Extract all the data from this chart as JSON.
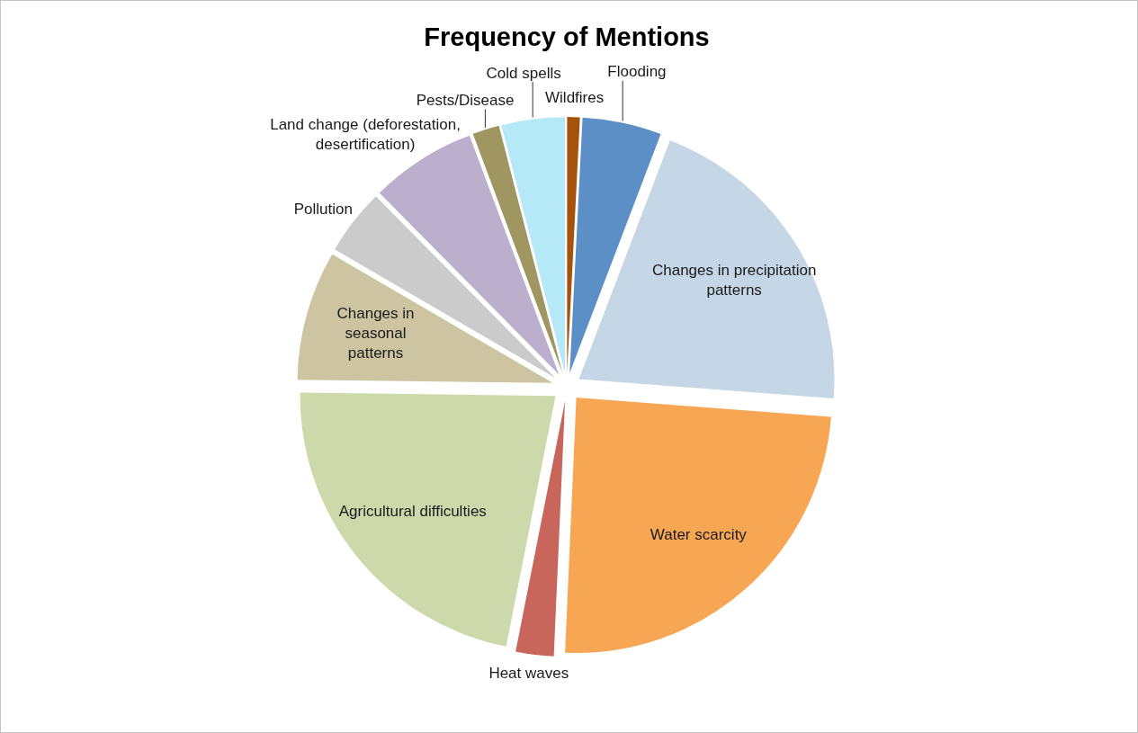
{
  "chart_data": {
    "type": "pie",
    "title": "Frequency of Mentions",
    "categories": [
      "Wildfires",
      "Flooding",
      "Changes in precipitation patterns",
      "Water scarcity",
      "Heat waves",
      "Agricultural difficulties",
      "Changes in seasonal patterns",
      "Pollution",
      "Land change (deforestation, desertification)",
      "Pests/Disease",
      "Cold spells"
    ],
    "values": [
      0.8,
      5.0,
      20.4,
      24.5,
      2.4,
      22.1,
      8.2,
      4.2,
      6.7,
      1.7,
      4.0
    ],
    "colors": [
      "#a5520c",
      "#5b8fc6",
      "#c5d6e7",
      "#f7a654",
      "#c8665b",
      "#cdd9ab",
      "#cdc4a2",
      "#cbcbcb",
      "#bcafcd",
      "#a09662",
      "#b5e9f8"
    ]
  }
}
